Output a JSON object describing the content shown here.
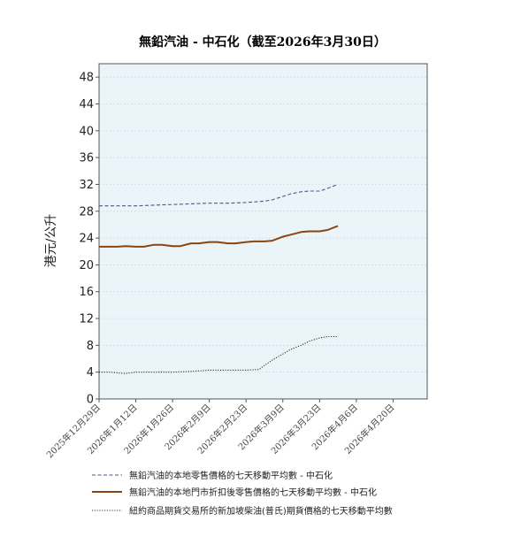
{
  "chart_data": {
    "type": "line",
    "title": "無鉛汽油 - 中石化（截至2026年3月30日）",
    "ylabel": "港元/公升",
    "xlabel": "",
    "ylim": [
      0,
      50
    ],
    "yticks": [
      0,
      4,
      8,
      12,
      16,
      20,
      24,
      28,
      32,
      36,
      40,
      44,
      48
    ],
    "x_range": [
      "2025-12-29",
      "2026-05-03"
    ],
    "x_tick_labels": [
      "2025年12月29日",
      "2026年1月12日",
      "2026年1月26日",
      "2026年2月9日",
      "2026年2月23日",
      "2026年3月9日",
      "2026年3月23日",
      "2026年4月6日",
      "2026年4月20日"
    ],
    "x_tick_dates": [
      "2025-12-29",
      "2026-01-12",
      "2026-01-26",
      "2026-02-09",
      "2026-02-23",
      "2026-03-09",
      "2026-03-23",
      "2026-04-06",
      "2026-04-20"
    ],
    "grid": "horizontal",
    "plot_background": "#eaf4f9",
    "legend_position": "bottom",
    "series": [
      {
        "name": "無鉛汽油的本地零售價格的七天移動平均數 - 中石化",
        "style": "dashed",
        "color": "#4a5a8a",
        "x": [
          "2025-12-29",
          "2026-01-05",
          "2026-01-12",
          "2026-01-19",
          "2026-01-26",
          "2026-02-02",
          "2026-02-09",
          "2026-02-16",
          "2026-02-23",
          "2026-03-02",
          "2026-03-05",
          "2026-03-09",
          "2026-03-12",
          "2026-03-16",
          "2026-03-19",
          "2026-03-23",
          "2026-03-26",
          "2026-03-30"
        ],
        "values": [
          28.8,
          28.8,
          28.8,
          28.9,
          29.0,
          29.1,
          29.2,
          29.2,
          29.3,
          29.5,
          29.7,
          30.2,
          30.6,
          30.9,
          31.0,
          31.0,
          31.4,
          32.0
        ]
      },
      {
        "name": "無鉛汽油的本地門市折扣後零售價格的七天移動平均數 - 中石化",
        "style": "solid",
        "color": "#8b4513",
        "x": [
          "2025-12-29",
          "2026-01-02",
          "2026-01-05",
          "2026-01-08",
          "2026-01-12",
          "2026-01-15",
          "2026-01-19",
          "2026-01-22",
          "2026-01-26",
          "2026-01-29",
          "2026-02-02",
          "2026-02-05",
          "2026-02-09",
          "2026-02-12",
          "2026-02-16",
          "2026-02-19",
          "2026-02-23",
          "2026-02-26",
          "2026-03-02",
          "2026-03-05",
          "2026-03-09",
          "2026-03-12",
          "2026-03-16",
          "2026-03-19",
          "2026-03-23",
          "2026-03-26",
          "2026-03-30"
        ],
        "values": [
          22.7,
          22.7,
          22.7,
          22.8,
          22.7,
          22.7,
          23.0,
          23.0,
          22.8,
          22.8,
          23.2,
          23.2,
          23.4,
          23.4,
          23.2,
          23.2,
          23.4,
          23.5,
          23.5,
          23.6,
          24.2,
          24.5,
          24.9,
          25.0,
          25.0,
          25.2,
          25.8
        ]
      },
      {
        "name": "紐約商品期貨交易所的新加坡柴油(普氏)期貨價格的七天移動平均數",
        "style": "dotted",
        "color": "#333333",
        "x": [
          "2025-12-29",
          "2026-01-02",
          "2026-01-05",
          "2026-01-08",
          "2026-01-12",
          "2026-01-19",
          "2026-01-26",
          "2026-02-02",
          "2026-02-09",
          "2026-02-16",
          "2026-02-23",
          "2026-02-28",
          "2026-03-02",
          "2026-03-05",
          "2026-03-09",
          "2026-03-12",
          "2026-03-16",
          "2026-03-19",
          "2026-03-23",
          "2026-03-26",
          "2026-03-30"
        ],
        "values": [
          4.0,
          4.0,
          3.9,
          3.8,
          4.0,
          4.0,
          4.0,
          4.1,
          4.3,
          4.3,
          4.3,
          4.4,
          5.0,
          5.8,
          6.7,
          7.4,
          8.0,
          8.6,
          9.1,
          9.3,
          9.3
        ]
      }
    ]
  }
}
